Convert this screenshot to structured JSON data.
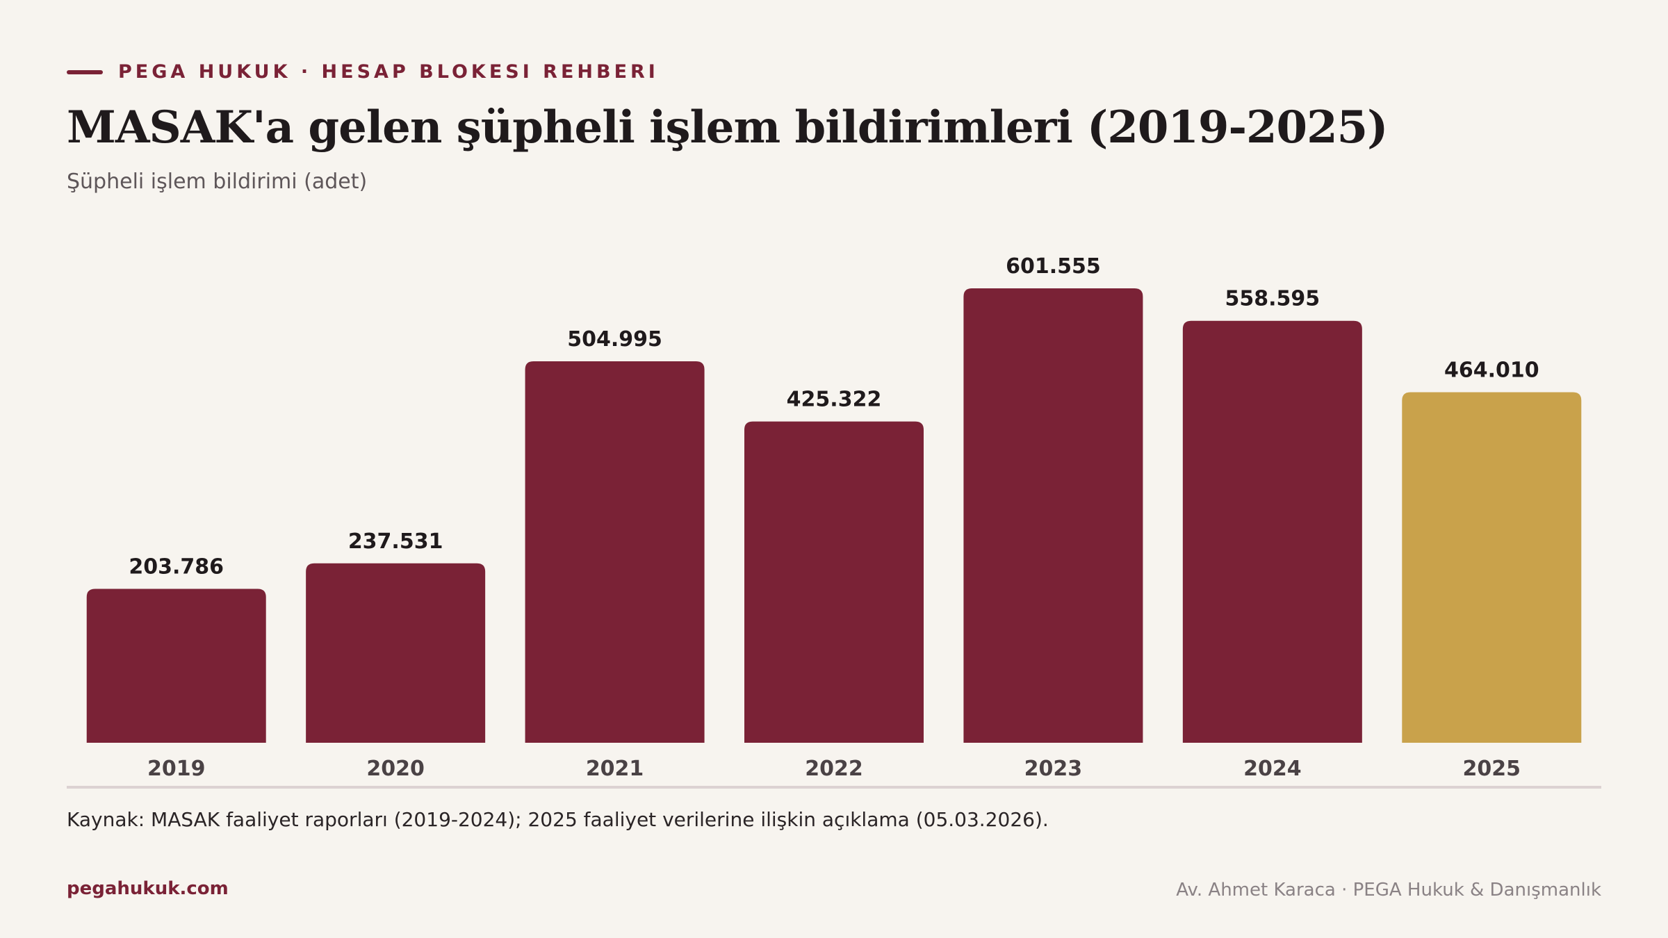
{
  "header": {
    "eyebrow": "PEGA HUKUK · HESAP BLOKESI REHBERI"
  },
  "chart_data": {
    "type": "bar",
    "title": "MASAK'a gelen şüpheli işlem bildirimleri (2019-2025)",
    "subtitle": "Şüpheli işlem bildirimi (adet)",
    "categories": [
      "2019",
      "2020",
      "2021",
      "2022",
      "2023",
      "2024",
      "2025"
    ],
    "values": [
      203786,
      237531,
      504995,
      425322,
      601555,
      558595,
      464010
    ],
    "value_labels": [
      "203.786",
      "237.531",
      "504.995",
      "425.322",
      "601.555",
      "558.595",
      "464.010"
    ],
    "bar_colors": [
      "#7a2236",
      "#7a2236",
      "#7a2236",
      "#7a2236",
      "#7a2236",
      "#7a2236",
      "#c9a24b"
    ],
    "ylim": [
      0,
      601555
    ],
    "grid": false,
    "legend": "none"
  },
  "source_note": "Kaynak: MASAK faaliyet raporları (2019-2024); 2025 faaliyet verilerine ilişkin açıklama (05.03.2026).",
  "footer": {
    "website": "pegahukuk.com",
    "credit": "Av. Ahmet Karaca · PEGA Hukuk & Danışmanlık"
  },
  "colors": {
    "accent": "#7a2236",
    "highlight": "#c9a24b",
    "background": "#f7f4ef"
  }
}
